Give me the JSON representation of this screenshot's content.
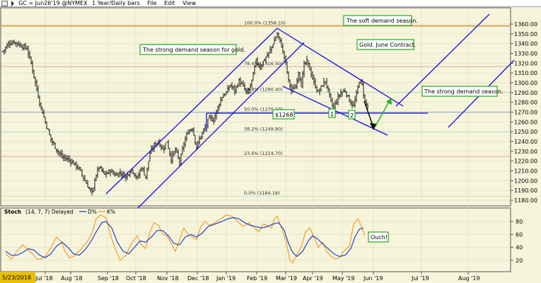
{
  "toolbar": {
    "symbol_text": "GC = Jun26'19 @NYMEX",
    "period_text": "1 Year/Daily bars",
    "menu_file": "File",
    "menu_edit": "Edit",
    "menu_view": "View"
  },
  "colors": {
    "background": "#f6f4da",
    "price_bars": "#000000",
    "trend_lines": "#1010e0",
    "annotation_border": "#22aa22",
    "fib_100_line": "#d09040",
    "stoch_d": "#2244cc",
    "stoch_k": "#ee9922",
    "date_badge": "#e8c000"
  },
  "chart_data": {
    "type": "candlestick",
    "title": "GC = Jun26'19 @NYMEX 1 Year/Daily bars",
    "ylim": [
      1175,
      1370
    ],
    "y_ticks": [
      1180,
      1190,
      1200,
      1210,
      1220,
      1230,
      1240,
      1250,
      1260,
      1270,
      1280,
      1290,
      1300,
      1310,
      1320,
      1330,
      1340,
      1350,
      1360
    ],
    "y_tick_labels": [
      "1180.00",
      "1190.00",
      "1200.00",
      "1210.00",
      "1220.00",
      "1230.00",
      "1240.00",
      "1250.00",
      "1260.00",
      "1270.00",
      "1280.00",
      "1290.00",
      "1300.00",
      "1310.00",
      "1320.00",
      "1330.00",
      "1340.00",
      "1350.00",
      "1360.00"
    ],
    "x_start_label": "5/23/2018",
    "x_labels": [
      "Jul '18",
      "Aug '18",
      "Sep '18",
      "Oct '18",
      "Nov '18",
      "Dec '18",
      "Jan '19",
      "Feb '19",
      "Mar '19",
      "Apr '19",
      "May '19",
      "Jun '19",
      "Jul '19",
      "Aug '19"
    ],
    "x_label_pos": [
      64,
      100,
      152,
      192,
      236,
      279,
      320,
      363,
      404,
      442,
      484,
      528,
      596,
      662
    ],
    "price_path": [
      [
        4,
        1332
      ],
      [
        12,
        1340
      ],
      [
        20,
        1342
      ],
      [
        30,
        1338
      ],
      [
        38,
        1335
      ],
      [
        44,
        1320
      ],
      [
        50,
        1300
      ],
      [
        56,
        1280
      ],
      [
        64,
        1260
      ],
      [
        72,
        1242
      ],
      [
        80,
        1232
      ],
      [
        88,
        1224
      ],
      [
        96,
        1222
      ],
      [
        104,
        1218
      ],
      [
        112,
        1212
      ],
      [
        120,
        1200
      ],
      [
        126,
        1192
      ],
      [
        131,
        1186
      ],
      [
        134,
        1202
      ],
      [
        140,
        1214
      ],
      [
        148,
        1206
      ],
      [
        156,
        1210
      ],
      [
        162,
        1206
      ],
      [
        170,
        1208
      ],
      [
        178,
        1204
      ],
      [
        186,
        1212
      ],
      [
        194,
        1202
      ],
      [
        200,
        1214
      ],
      [
        206,
        1204
      ],
      [
        212,
        1228
      ],
      [
        218,
        1236
      ],
      [
        224,
        1240
      ],
      [
        230,
        1232
      ],
      [
        236,
        1240
      ],
      [
        242,
        1222
      ],
      [
        248,
        1232
      ],
      [
        254,
        1218
      ],
      [
        260,
        1238
      ],
      [
        266,
        1250
      ],
      [
        272,
        1254
      ],
      [
        278,
        1234
      ],
      [
        284,
        1246
      ],
      [
        290,
        1254
      ],
      [
        296,
        1264
      ],
      [
        302,
        1262
      ],
      [
        308,
        1275
      ],
      [
        314,
        1286
      ],
      [
        320,
        1290
      ],
      [
        326,
        1298
      ],
      [
        332,
        1292
      ],
      [
        338,
        1302
      ],
      [
        344,
        1296
      ],
      [
        350,
        1288
      ],
      [
        356,
        1302
      ],
      [
        362,
        1322
      ],
      [
        368,
        1316
      ],
      [
        374,
        1324
      ],
      [
        380,
        1330
      ],
      [
        386,
        1340
      ],
      [
        392,
        1350
      ],
      [
        398,
        1338
      ],
      [
        404,
        1320
      ],
      [
        408,
        1302
      ],
      [
        412,
        1292
      ],
      [
        418,
        1296
      ],
      [
        422,
        1312
      ],
      [
        426,
        1298
      ],
      [
        430,
        1318
      ],
      [
        434,
        1322
      ],
      [
        438,
        1314
      ],
      [
        444,
        1300
      ],
      [
        450,
        1290
      ],
      [
        456,
        1298
      ],
      [
        460,
        1302
      ],
      [
        464,
        1292
      ],
      [
        468,
        1280
      ],
      [
        472,
        1274
      ],
      [
        476,
        1282
      ],
      [
        482,
        1290
      ],
      [
        488,
        1292
      ],
      [
        494,
        1282
      ],
      [
        500,
        1276
      ],
      [
        504,
        1288
      ],
      [
        508,
        1302
      ],
      [
        512,
        1298
      ],
      [
        516,
        1280
      ],
      [
        520,
        1276
      ]
    ],
    "fib_levels": [
      {
        "label": "100.0% (1358.10)",
        "value": 1358.1
      },
      {
        "label": "78.4% (1316.50)",
        "value": 1316.5
      },
      {
        "label": "61.8% (1290.40)",
        "value": 1290.4
      },
      {
        "label": "50.0% (1270.10)",
        "value": 1270.1
      },
      {
        "label": "38.2% (1249.80)",
        "value": 1249.8
      },
      {
        "label": "23.6% (1224.70)",
        "value": 1224.7
      },
      {
        "label": "0.0% (1184.18)",
        "value": 1184.18
      }
    ],
    "annotations": [
      "The strong demand season for gold.",
      "The soft demand season.",
      "Gold. June Contract.",
      "The strong demand season.",
      "$1268",
      "1",
      "2",
      "Ouch!"
    ],
    "stochastic": {
      "label": "Stoch",
      "params": "(14, 7, 7) Delayed",
      "d_label": "D%",
      "k_label": "K%",
      "ylim": [
        5,
        95
      ],
      "y_ticks": [
        20,
        40,
        60,
        80
      ],
      "k_path": [
        [
          8,
          30
        ],
        [
          16,
          22
        ],
        [
          24,
          34
        ],
        [
          32,
          44
        ],
        [
          40,
          36
        ],
        [
          46,
          30
        ],
        [
          52,
          22
        ],
        [
          58,
          22
        ],
        [
          64,
          26
        ],
        [
          72,
          40
        ],
        [
          80,
          56
        ],
        [
          86,
          50
        ],
        [
          92,
          34
        ],
        [
          98,
          24
        ],
        [
          104,
          26
        ],
        [
          112,
          34
        ],
        [
          118,
          42
        ],
        [
          124,
          50
        ],
        [
          130,
          62
        ],
        [
          136,
          84
        ],
        [
          142,
          90
        ],
        [
          150,
          86
        ],
        [
          156,
          60
        ],
        [
          162,
          40
        ],
        [
          170,
          20
        ],
        [
          178,
          28
        ],
        [
          186,
          46
        ],
        [
          194,
          58
        ],
        [
          200,
          44
        ],
        [
          206,
          38
        ],
        [
          212,
          64
        ],
        [
          218,
          78
        ],
        [
          224,
          74
        ],
        [
          230,
          60
        ],
        [
          236,
          58
        ],
        [
          242,
          46
        ],
        [
          248,
          34
        ],
        [
          254,
          52
        ],
        [
          260,
          70
        ],
        [
          266,
          60
        ],
        [
          272,
          56
        ],
        [
          278,
          52
        ],
        [
          284,
          72
        ],
        [
          290,
          80
        ],
        [
          296,
          74
        ],
        [
          304,
          78
        ],
        [
          312,
          84
        ],
        [
          320,
          90
        ],
        [
          328,
          88
        ],
        [
          336,
          80
        ],
        [
          344,
          72
        ],
        [
          352,
          78
        ],
        [
          360,
          70
        ],
        [
          366,
          64
        ],
        [
          372,
          76
        ],
        [
          378,
          74
        ],
        [
          384,
          70
        ],
        [
          388,
          84
        ],
        [
          392,
          88
        ],
        [
          398,
          70
        ],
        [
          404,
          52
        ],
        [
          410,
          20
        ],
        [
          414,
          16
        ],
        [
          420,
          30
        ],
        [
          426,
          40
        ],
        [
          432,
          64
        ],
        [
          438,
          70
        ],
        [
          444,
          56
        ],
        [
          450,
          40
        ],
        [
          456,
          48
        ],
        [
          462,
          34
        ],
        [
          468,
          26
        ],
        [
          474,
          22
        ],
        [
          480,
          24
        ],
        [
          486,
          34
        ],
        [
          494,
          42
        ],
        [
          500,
          76
        ],
        [
          506,
          84
        ],
        [
          512,
          70
        ],
        [
          516,
          58
        ]
      ],
      "d_path": [
        [
          8,
          34
        ],
        [
          16,
          28
        ],
        [
          24,
          28
        ],
        [
          32,
          32
        ],
        [
          40,
          38
        ],
        [
          48,
          36
        ],
        [
          56,
          28
        ],
        [
          64,
          24
        ],
        [
          72,
          30
        ],
        [
          80,
          42
        ],
        [
          88,
          48
        ],
        [
          96,
          40
        ],
        [
          104,
          30
        ],
        [
          112,
          28
        ],
        [
          120,
          36
        ],
        [
          128,
          48
        ],
        [
          136,
          64
        ],
        [
          144,
          78
        ],
        [
          150,
          80
        ],
        [
          158,
          70
        ],
        [
          166,
          48
        ],
        [
          174,
          34
        ],
        [
          182,
          30
        ],
        [
          190,
          40
        ],
        [
          198,
          50
        ],
        [
          206,
          48
        ],
        [
          214,
          56
        ],
        [
          222,
          66
        ],
        [
          230,
          66
        ],
        [
          238,
          58
        ],
        [
          246,
          46
        ],
        [
          254,
          44
        ],
        [
          262,
          56
        ],
        [
          270,
          60
        ],
        [
          278,
          56
        ],
        [
          286,
          62
        ],
        [
          294,
          72
        ],
        [
          304,
          76
        ],
        [
          314,
          80
        ],
        [
          322,
          84
        ],
        [
          330,
          86
        ],
        [
          338,
          84
        ],
        [
          346,
          78
        ],
        [
          354,
          74
        ],
        [
          362,
          72
        ],
        [
          370,
          70
        ],
        [
          378,
          72
        ],
        [
          386,
          76
        ],
        [
          394,
          78
        ],
        [
          402,
          66
        ],
        [
          408,
          46
        ],
        [
          414,
          32
        ],
        [
          420,
          26
        ],
        [
          428,
          34
        ],
        [
          436,
          50
        ],
        [
          442,
          58
        ],
        [
          448,
          54
        ],
        [
          456,
          46
        ],
        [
          464,
          38
        ],
        [
          472,
          30
        ],
        [
          480,
          26
        ],
        [
          488,
          28
        ],
        [
          496,
          38
        ],
        [
          502,
          56
        ],
        [
          508,
          68
        ],
        [
          514,
          70
        ]
      ]
    }
  }
}
